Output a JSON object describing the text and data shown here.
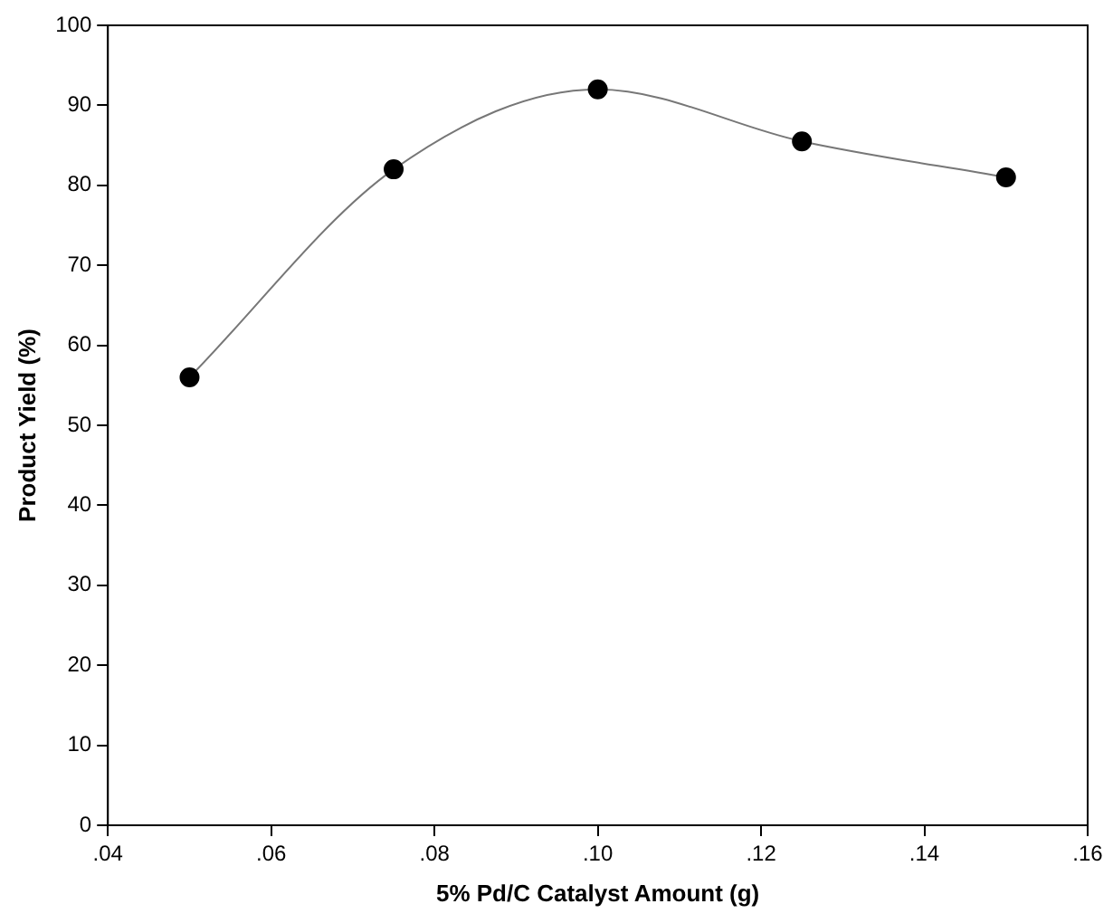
{
  "chart_data": {
    "type": "line",
    "xlabel": "5% Pd/C Catalyst Amount (g)",
    "ylabel": "Product Yield (%)",
    "x": [
      0.05,
      0.075,
      0.1,
      0.125,
      0.15
    ],
    "series": [
      {
        "color": "#000000",
        "values": [
          56,
          82,
          92,
          85.5,
          81
        ]
      }
    ],
    "xlim": [
      0.04,
      0.16
    ],
    "xticks": [
      {
        "value": 0.04,
        "label": ".04"
      },
      {
        "value": 0.06,
        "label": ".06"
      },
      {
        "value": 0.08,
        "label": ".08"
      },
      {
        "value": 0.1,
        "label": ".10"
      },
      {
        "value": 0.12,
        "label": ".12"
      },
      {
        "value": 0.14,
        "label": ".14"
      },
      {
        "value": 0.16,
        "label": ".16"
      }
    ],
    "ylim": [
      0,
      100
    ],
    "yticks": [
      0,
      10,
      20,
      30,
      40,
      50,
      60,
      70,
      80,
      90,
      100
    ],
    "grid": false,
    "legend": false,
    "marker": "circle",
    "line_style": "solid"
  }
}
